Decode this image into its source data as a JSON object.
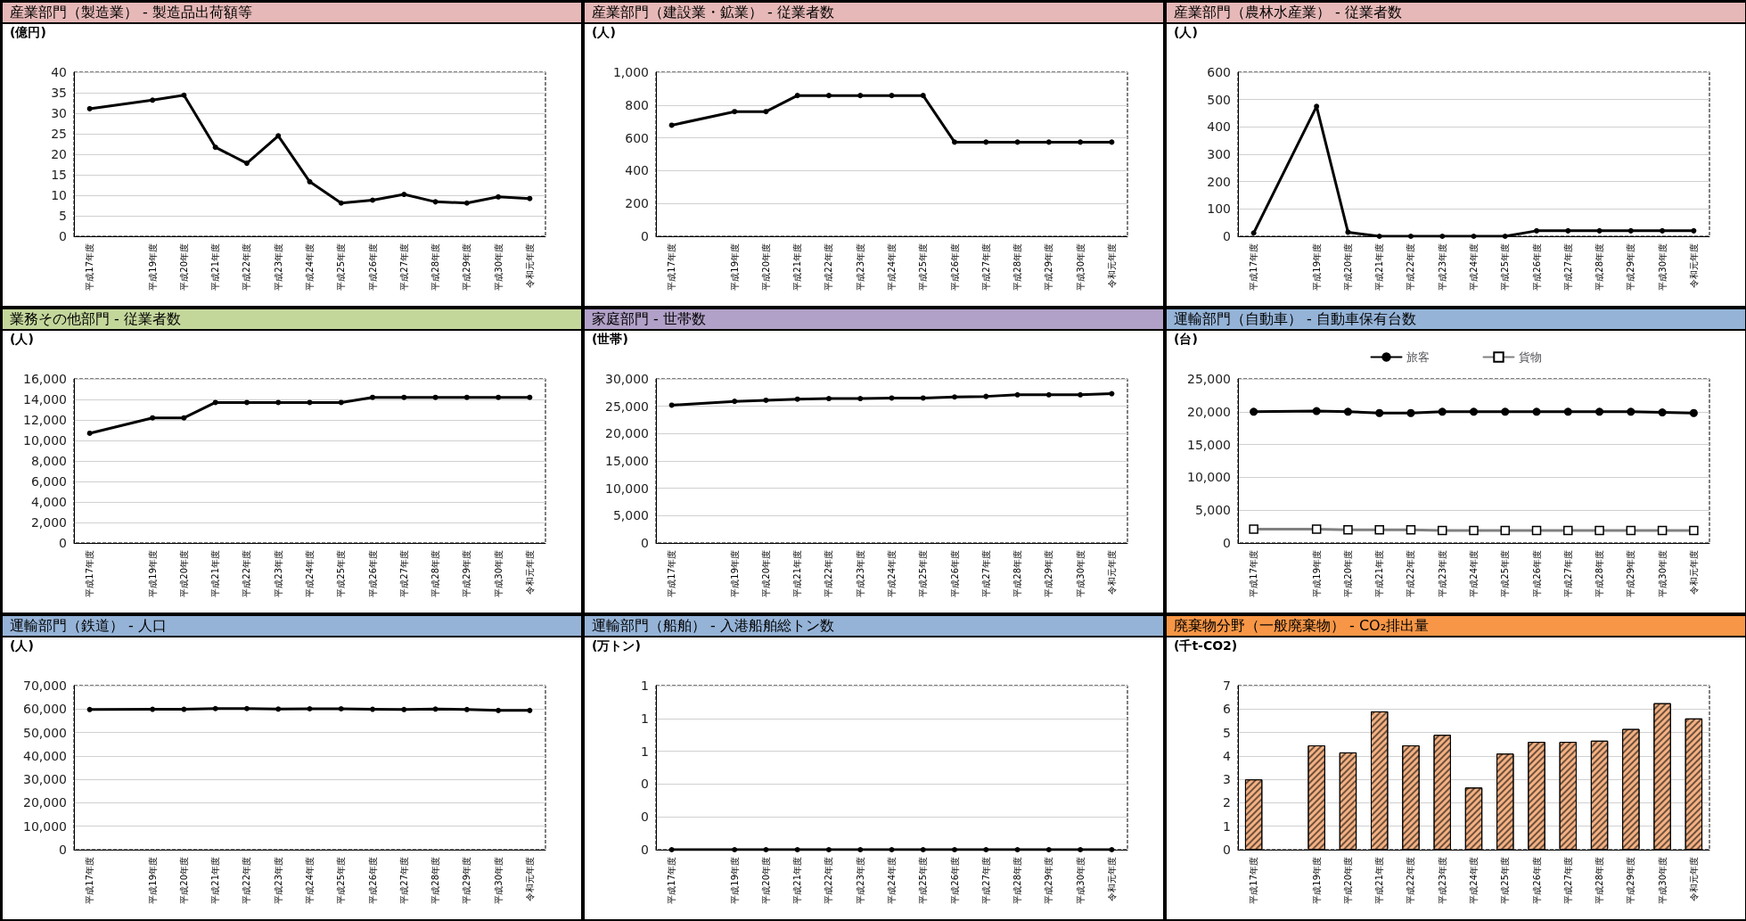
{
  "chart_data": [
    {
      "type": "line",
      "title": "産業部門（製造業） - 製造品出荷額等",
      "ylabel": "(億円)",
      "categories": [
        "平成17年度",
        null,
        "平成19年度",
        "平成20年度",
        "平成21年度",
        "平成22年度",
        "平成23年度",
        "平成24年度",
        "平成25年度",
        "平成26年度",
        "平成27年度",
        "平成28年度",
        "平成29年度",
        "平成30年度",
        "令和元年度"
      ],
      "series": [
        {
          "color": "#000000",
          "values": [
            31.1,
            null,
            33.2,
            34.4,
            21.7,
            17.8,
            24.5,
            13.3,
            8.1,
            8.8,
            10.2,
            8.4,
            8.1,
            9.6,
            9.2
          ]
        }
      ],
      "ylim": [
        0,
        40
      ],
      "yticks": [
        0,
        5,
        10,
        15,
        20,
        25,
        30,
        35,
        40
      ],
      "grid": "y",
      "marker": "circle",
      "line_style": "solid"
    },
    {
      "type": "line",
      "title": "産業部門（建設業・鉱業） - 従業者数",
      "ylabel": "(人)",
      "categories": [
        "平成17年度",
        null,
        "平成19年度",
        "平成20年度",
        "平成21年度",
        "平成22年度",
        "平成23年度",
        "平成24年度",
        "平成25年度",
        "平成26年度",
        "平成27年度",
        "平成28年度",
        "平成29年度",
        "平成30年度",
        "令和元年度"
      ],
      "series": [
        {
          "color": "#000000",
          "values": [
            677,
            null,
            760,
            760,
            858,
            858,
            858,
            858,
            858,
            574,
            574,
            574,
            574,
            574,
            574
          ]
        }
      ],
      "ylim": [
        0,
        1000
      ],
      "yticks": [
        0,
        200,
        400,
        600,
        800,
        {
          "value": 1000,
          "label": "1,000"
        }
      ],
      "grid": "y",
      "marker": "circle",
      "line_style": "solid"
    },
    {
      "type": "line",
      "title": "産業部門（農林水産業） - 従業者数",
      "ylabel": "(人)",
      "categories": [
        "平成17年度",
        null,
        "平成19年度",
        "平成20年度",
        "平成21年度",
        "平成22年度",
        "平成23年度",
        "平成24年度",
        "平成25年度",
        "平成26年度",
        "平成27年度",
        "平成28年度",
        "平成29年度",
        "平成30年度",
        "令和元年度"
      ],
      "series": [
        {
          "color": "#000000",
          "values": [
            12,
            null,
            475,
            15,
            0,
            0,
            0,
            0,
            0,
            20,
            20,
            20,
            20,
            20,
            20
          ]
        }
      ],
      "ylim": [
        0,
        600
      ],
      "yticks": [
        0,
        100,
        200,
        300,
        400,
        500,
        600
      ],
      "grid": "y",
      "marker": "circle",
      "line_style": "solid"
    },
    {
      "type": "line",
      "title": "業務その他部門 - 従業者数",
      "ylabel": "(人)",
      "categories": [
        "平成17年度",
        null,
        "平成19年度",
        "平成20年度",
        "平成21年度",
        "平成22年度",
        "平成23年度",
        "平成24年度",
        "平成25年度",
        "平成26年度",
        "平成27年度",
        "平成28年度",
        "平成29年度",
        "平成30年度",
        "令和元年度"
      ],
      "series": [
        {
          "color": "#000000",
          "values": [
            10700,
            null,
            12200,
            12200,
            13700,
            13700,
            13700,
            13700,
            13700,
            14200,
            14200,
            14200,
            14200,
            14200,
            14200
          ]
        }
      ],
      "ylim": [
        0,
        16000
      ],
      "yticks": [
        0,
        {
          "value": 2000,
          "label": "2,000"
        },
        {
          "value": 4000,
          "label": "4,000"
        },
        {
          "value": 6000,
          "label": "6,000"
        },
        {
          "value": 8000,
          "label": "8,000"
        },
        {
          "value": 10000,
          "label": "10,000"
        },
        {
          "value": 12000,
          "label": "12,000"
        },
        {
          "value": 14000,
          "label": "14,000"
        },
        {
          "value": 16000,
          "label": "16,000"
        }
      ],
      "grid": "y",
      "marker": "circle",
      "line_style": "solid"
    },
    {
      "type": "line",
      "title": "家庭部門 - 世帯数",
      "ylabel": "(世帯)",
      "categories": [
        "平成17年度",
        null,
        "平成19年度",
        "平成20年度",
        "平成21年度",
        "平成22年度",
        "平成23年度",
        "平成24年度",
        "平成25年度",
        "平成26年度",
        "平成27年度",
        "平成28年度",
        "平成29年度",
        "平成30年度",
        "令和元年度"
      ],
      "series": [
        {
          "color": "#000000",
          "values": [
            25200,
            null,
            25900,
            26100,
            26300,
            26400,
            26400,
            26500,
            26500,
            26700,
            26800,
            27100,
            27100,
            27100,
            27300
          ]
        }
      ],
      "ylim": [
        0,
        30000
      ],
      "yticks": [
        0,
        {
          "value": 5000,
          "label": "5,000"
        },
        {
          "value": 10000,
          "label": "10,000"
        },
        {
          "value": 15000,
          "label": "15,000"
        },
        {
          "value": 20000,
          "label": "20,000"
        },
        {
          "value": 25000,
          "label": "25,000"
        },
        {
          "value": 30000,
          "label": "30,000"
        }
      ],
      "grid": "y",
      "marker": "circle",
      "line_style": "solid"
    },
    {
      "type": "line",
      "title": "運輸部門（自動車） - 自動車保有台数",
      "ylabel": "(台)",
      "categories": [
        "平成17年度",
        null,
        "平成19年度",
        "平成20年度",
        "平成21年度",
        "平成22年度",
        "平成23年度",
        "平成24年度",
        "平成25年度",
        "平成26年度",
        "平成27年度",
        "平成28年度",
        "平成29年度",
        "平成30年度",
        "令和元年度"
      ],
      "series": [
        {
          "name": "旅客",
          "color": "#000000",
          "values": [
            20000,
            null,
            20100,
            20000,
            19800,
            19800,
            20000,
            20000,
            20000,
            20000,
            20000,
            20000,
            20000,
            19900,
            19800
          ]
        },
        {
          "name": "貨物",
          "color": "#808080",
          "marker": "square",
          "values": [
            2100,
            null,
            2100,
            2000,
            2000,
            2000,
            1900,
            1900,
            1900,
            1900,
            1900,
            1900,
            1900,
            1900,
            1900
          ]
        }
      ],
      "ylim": [
        0,
        25000
      ],
      "yticks": [
        0,
        {
          "value": 5000,
          "label": "5,000"
        },
        {
          "value": 10000,
          "label": "10,000"
        },
        {
          "value": 15000,
          "label": "15,000"
        },
        {
          "value": 20000,
          "label": "20,000"
        },
        {
          "value": 25000,
          "label": "25,000"
        }
      ],
      "grid": "y",
      "marker": "circle",
      "line_style": "solid",
      "legend": "top"
    },
    {
      "type": "line",
      "title": "運輸部門（鉄道） - 人口",
      "ylabel": "(人)",
      "categories": [
        "平成17年度",
        null,
        "平成19年度",
        "平成20年度",
        "平成21年度",
        "平成22年度",
        "平成23年度",
        "平成24年度",
        "平成25年度",
        "平成26年度",
        "平成27年度",
        "平成28年度",
        "平成29年度",
        "平成30年度",
        "令和元年度"
      ],
      "series": [
        {
          "color": "#000000",
          "values": [
            59800,
            null,
            59900,
            59900,
            60200,
            60200,
            60000,
            60100,
            60100,
            59900,
            59800,
            60000,
            59800,
            59400,
            59400
          ]
        }
      ],
      "ylim": [
        0,
        70000
      ],
      "yticks": [
        0,
        {
          "value": 10000,
          "label": "10,000"
        },
        {
          "value": 20000,
          "label": "20,000"
        },
        {
          "value": 30000,
          "label": "30,000"
        },
        {
          "value": 40000,
          "label": "40,000"
        },
        {
          "value": 50000,
          "label": "50,000"
        },
        {
          "value": 60000,
          "label": "60,000"
        },
        {
          "value": 70000,
          "label": "70,000"
        }
      ],
      "grid": "y",
      "marker": "circle",
      "line_style": "solid"
    },
    {
      "type": "line",
      "title": "運輸部門（船舶） - 入港船舶総トン数",
      "ylabel": "(万トン)",
      "categories": [
        "平成17年度",
        null,
        "平成19年度",
        "平成20年度",
        "平成21年度",
        "平成22年度",
        "平成23年度",
        "平成24年度",
        "平成25年度",
        "平成26年度",
        "平成27年度",
        "平成28年度",
        "平成29年度",
        "平成30年度",
        "令和元年度"
      ],
      "series": [
        {
          "color": "#000000",
          "values": [
            0,
            null,
            0,
            0,
            0,
            0,
            0,
            0,
            0,
            0,
            0,
            0,
            0,
            0,
            0
          ]
        }
      ],
      "ylim": [
        0,
        1
      ],
      "yticks": [
        0,
        {
          "value": 0.2,
          "label": "0"
        },
        {
          "value": 0.4,
          "label": "0"
        },
        {
          "value": 0.6,
          "label": "1"
        },
        {
          "value": 0.8,
          "label": "1"
        },
        1
      ],
      "grid": "y",
      "marker": "circle",
      "line_style": "solid"
    },
    {
      "type": "bar",
      "title": "廃棄物分野（一般廃棄物） - CO₂排出量",
      "ylabel": "(千t-CO2)",
      "categories": [
        "平成17年度",
        null,
        "平成19年度",
        "平成20年度",
        "平成21年度",
        "平成22年度",
        "平成23年度",
        "平成24年度",
        "平成25年度",
        "平成26年度",
        "平成27年度",
        "平成28年度",
        "平成29年度",
        "平成30年度",
        "令和元年度"
      ],
      "series": [
        {
          "color": "#f4b183",
          "values": [
            3.0,
            null,
            4.45,
            4.15,
            5.9,
            4.45,
            4.9,
            2.65,
            4.1,
            4.6,
            4.6,
            4.65,
            5.15,
            6.25,
            5.6
          ]
        }
      ],
      "ylim": [
        0,
        7
      ],
      "yticks": [
        0,
        1,
        2,
        3,
        4,
        5,
        6,
        7
      ],
      "grid": "y"
    }
  ]
}
